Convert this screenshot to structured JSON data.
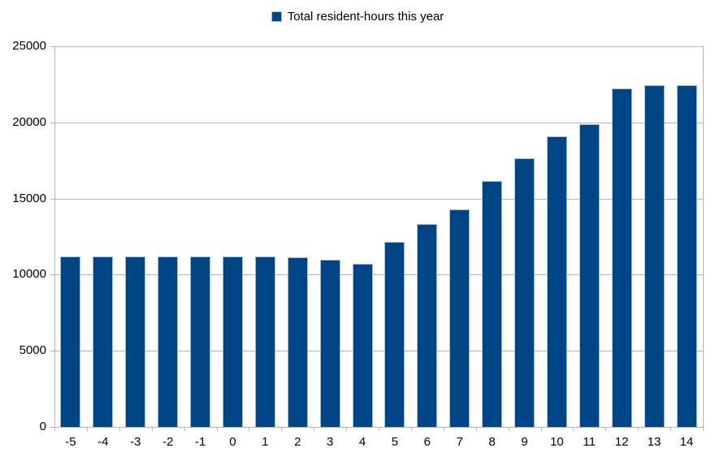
{
  "chart_data": {
    "type": "bar",
    "title": "",
    "legend_position": "top-center",
    "categories": [
      -5,
      -4,
      -3,
      -2,
      -1,
      0,
      1,
      2,
      3,
      4,
      5,
      6,
      7,
      8,
      9,
      10,
      11,
      12,
      13,
      14
    ],
    "series": [
      {
        "name": "Total resident-hours this year",
        "values": [
          11200,
          11200,
          11200,
          11200,
          11200,
          11200,
          11200,
          11150,
          11000,
          10700,
          12150,
          13300,
          14300,
          16150,
          17650,
          19100,
          19900,
          22250,
          22450,
          22450
        ]
      }
    ],
    "xlabel": "",
    "ylabel": "",
    "ylim": [
      0,
      25000
    ],
    "yticks": [
      0,
      5000,
      10000,
      15000,
      20000,
      25000
    ],
    "grid": true,
    "colors": {
      "bar_fill": "#004586",
      "bar_border": "#a3bedc",
      "grid": "#b3b3b3",
      "axis": "#b3b3b3",
      "text": "#000000",
      "background": "#ffffff"
    }
  }
}
